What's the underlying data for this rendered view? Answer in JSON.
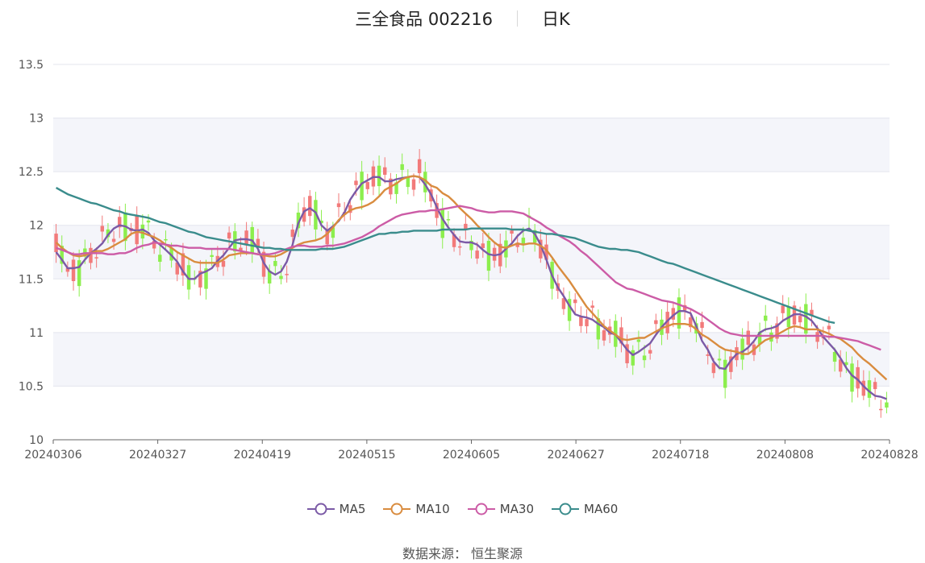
{
  "header": {
    "stock_name": "三全食品 002216",
    "period": "日K"
  },
  "source_text": "数据来源： 恒生聚源",
  "chart_data": {
    "type": "candlestick",
    "title": "三全食品 002216",
    "period": "日K",
    "ylim": [
      10,
      13.5
    ],
    "y_ticks": [
      "10",
      "10.5",
      "11",
      "11.5",
      "12",
      "12.5",
      "13",
      "13.5"
    ],
    "x_ticks": [
      "20240306",
      "20240327",
      "20240419",
      "20240515",
      "20240605",
      "20240627",
      "20240718",
      "20240808",
      "20240828"
    ],
    "grid": true,
    "legend_position": "bottom",
    "colors": {
      "up": "#f27a7a",
      "down": "#8cee4d",
      "MA5": "#7b5aa6",
      "MA10": "#d98c3f",
      "MA30": "#cc5ca6",
      "MA60": "#3a8c8c",
      "band": "#f4f5fa"
    },
    "series": [
      {
        "name": "MA5",
        "values": [
          11.75,
          11.68,
          11.6,
          11.6,
          11.61,
          11.68,
          11.74,
          11.78,
          11.83,
          11.91,
          11.97,
          12.0,
          11.99,
          11.96,
          11.95,
          11.96,
          11.93,
          11.86,
          11.82,
          11.77,
          11.72,
          11.66,
          11.57,
          11.5,
          11.5,
          11.55,
          11.57,
          11.6,
          11.67,
          11.72,
          11.79,
          11.86,
          11.87,
          11.87,
          11.86,
          11.78,
          11.65,
          11.57,
          11.54,
          11.57,
          11.66,
          11.82,
          12.02,
          12.13,
          12.16,
          12.12,
          12.0,
          11.95,
          11.99,
          12.04,
          12.12,
          12.24,
          12.32,
          12.39,
          12.42,
          12.45,
          12.45,
          12.41,
          12.41,
          12.43,
          12.44,
          12.45,
          12.46,
          12.45,
          12.38,
          12.29,
          12.17,
          12.06,
          11.98,
          11.91,
          11.85,
          11.84,
          11.84,
          11.82,
          11.77,
          11.73,
          11.72,
          11.73,
          11.78,
          11.83,
          11.9,
          11.95,
          11.97,
          11.92,
          11.82,
          11.68,
          11.53,
          11.42,
          11.34,
          11.25,
          11.17,
          11.15,
          11.14,
          11.12,
          11.08,
          11.05,
          11.0,
          10.98,
          10.91,
          10.84,
          10.79,
          10.82,
          10.86,
          10.9,
          10.98,
          11.05,
          11.11,
          11.16,
          11.2,
          11.2,
          11.18,
          11.06,
          10.92,
          10.84,
          10.73,
          10.67,
          10.66,
          10.74,
          10.8,
          10.82,
          10.86,
          10.92,
          11.0,
          11.03,
          11.04,
          11.06,
          11.11,
          11.14,
          11.17,
          11.17,
          11.15,
          11.11,
          11.04,
          10.96,
          10.9,
          10.84,
          10.76,
          10.67,
          10.6,
          10.56,
          10.5,
          10.45,
          10.41,
          10.4,
          10.38
        ]
      },
      {
        "name": "MA10",
        "values": [
          11.84,
          11.79,
          11.75,
          11.72,
          11.71,
          11.72,
          11.74,
          11.76,
          11.76,
          11.78,
          11.81,
          11.84,
          11.87,
          11.92,
          11.94,
          11.93,
          11.91,
          11.89,
          11.86,
          11.82,
          11.79,
          11.75,
          11.72,
          11.69,
          11.66,
          11.65,
          11.65,
          11.65,
          11.65,
          11.68,
          11.72,
          11.73,
          11.74,
          11.74,
          11.74,
          11.73,
          11.72,
          11.71,
          11.71,
          11.73,
          11.76,
          11.79,
          11.82,
          11.84,
          11.85,
          11.86,
          11.88,
          11.92,
          11.98,
          12.05,
          12.1,
          12.14,
          12.16,
          12.17,
          12.19,
          12.22,
          12.27,
          12.33,
          12.36,
          12.39,
          12.43,
          12.45,
          12.46,
          12.45,
          12.42,
          12.37,
          12.35,
          12.3,
          12.27,
          12.22,
          12.16,
          12.11,
          12.06,
          12.0,
          11.95,
          11.89,
          11.84,
          11.8,
          11.79,
          11.81,
          11.83,
          11.82,
          11.83,
          11.83,
          11.81,
          11.77,
          11.7,
          11.62,
          11.55,
          11.48,
          11.4,
          11.32,
          11.24,
          11.18,
          11.12,
          11.06,
          11.02,
          10.98,
          10.94,
          10.93,
          10.94,
          10.95,
          10.95,
          10.98,
          11.01,
          11.04,
          11.06,
          11.08,
          11.08,
          11.08,
          11.07,
          11.03,
          10.98,
          10.95,
          10.91,
          10.87,
          10.84,
          10.83,
          10.82,
          10.8,
          10.8,
          10.84,
          10.89,
          10.93,
          10.95,
          10.98,
          11.01,
          11.04,
          11.06,
          11.05,
          11.03,
          11.03,
          11.03,
          11.01,
          10.99,
          10.96,
          10.94,
          10.9,
          10.86,
          10.8,
          10.75,
          10.71,
          10.66,
          10.61,
          10.56
        ]
      },
      {
        "name": "MA30",
        "values": [
          11.79,
          11.77,
          11.75,
          11.73,
          11.73,
          11.74,
          11.74,
          11.74,
          11.74,
          11.73,
          11.73,
          11.74,
          11.74,
          11.76,
          11.79,
          11.81,
          11.82,
          11.84,
          11.83,
          11.82,
          11.81,
          11.81,
          11.8,
          11.79,
          11.79,
          11.79,
          11.78,
          11.78,
          11.78,
          11.78,
          11.78,
          11.77,
          11.76,
          11.75,
          11.74,
          11.73,
          11.73,
          11.73,
          11.74,
          11.76,
          11.78,
          11.8,
          11.81,
          11.81,
          11.8,
          11.8,
          11.8,
          11.81,
          11.81,
          11.82,
          11.83,
          11.85,
          11.87,
          11.89,
          11.92,
          11.95,
          11.99,
          12.02,
          12.05,
          12.08,
          12.1,
          12.11,
          12.12,
          12.13,
          12.13,
          12.14,
          12.14,
          12.15,
          12.16,
          12.17,
          12.18,
          12.17,
          12.16,
          12.14,
          12.13,
          12.12,
          12.12,
          12.13,
          12.13,
          12.13,
          12.12,
          12.11,
          12.08,
          12.05,
          12.02,
          11.98,
          11.95,
          11.91,
          11.88,
          11.85,
          11.81,
          11.76,
          11.72,
          11.67,
          11.62,
          11.57,
          11.52,
          11.47,
          11.44,
          11.41,
          11.4,
          11.38,
          11.36,
          11.34,
          11.32,
          11.3,
          11.29,
          11.28,
          11.26,
          11.24,
          11.22,
          11.19,
          11.16,
          11.12,
          11.08,
          11.04,
          11.01,
          10.99,
          10.98,
          10.97,
          10.97,
          10.97,
          10.97,
          10.97,
          10.97,
          10.97,
          10.97,
          10.97,
          10.97,
          10.97,
          10.97,
          10.97,
          10.97,
          10.97,
          10.96,
          10.96,
          10.95,
          10.94,
          10.93,
          10.92,
          10.9,
          10.88,
          10.86,
          10.84
        ]
      },
      {
        "name": "MA60",
        "values": [
          12.35,
          12.32,
          12.29,
          12.27,
          12.25,
          12.23,
          12.21,
          12.2,
          12.18,
          12.16,
          12.14,
          12.13,
          12.11,
          12.1,
          12.09,
          12.08,
          12.07,
          12.05,
          12.03,
          12.02,
          12.0,
          11.98,
          11.96,
          11.94,
          11.93,
          11.91,
          11.89,
          11.88,
          11.87,
          11.86,
          11.85,
          11.84,
          11.83,
          11.82,
          11.81,
          11.8,
          11.79,
          11.79,
          11.78,
          11.78,
          11.77,
          11.77,
          11.77,
          11.77,
          11.77,
          11.77,
          11.78,
          11.78,
          11.78,
          11.79,
          11.8,
          11.82,
          11.84,
          11.86,
          11.88,
          11.9,
          11.92,
          11.92,
          11.93,
          11.93,
          11.94,
          11.94,
          11.95,
          11.95,
          11.95,
          11.95,
          11.95,
          11.96,
          11.96,
          11.96,
          11.96,
          11.96,
          11.97,
          11.97,
          11.97,
          11.97,
          11.97,
          11.97,
          11.97,
          11.96,
          11.96,
          11.96,
          11.95,
          11.94,
          11.93,
          11.92,
          11.92,
          11.91,
          11.9,
          11.89,
          11.88,
          11.86,
          11.84,
          11.82,
          11.8,
          11.79,
          11.78,
          11.78,
          11.77,
          11.77,
          11.76,
          11.75,
          11.73,
          11.71,
          11.69,
          11.67,
          11.65,
          11.64,
          11.62,
          11.6,
          11.58,
          11.56,
          11.54,
          11.52,
          11.5,
          11.48,
          11.46,
          11.44,
          11.42,
          11.4,
          11.38,
          11.36,
          11.34,
          11.32,
          11.3,
          11.28,
          11.26,
          11.24,
          11.22,
          11.2,
          11.18,
          11.16,
          11.14,
          11.12,
          11.1,
          11.09
        ]
      }
    ]
  },
  "legend": [
    {
      "label": "MA5",
      "color": "#7b5aa6"
    },
    {
      "label": "MA10",
      "color": "#d98c3f"
    },
    {
      "label": "MA30",
      "color": "#cc5ca6"
    },
    {
      "label": "MA60",
      "color": "#3a8c8c"
    }
  ]
}
